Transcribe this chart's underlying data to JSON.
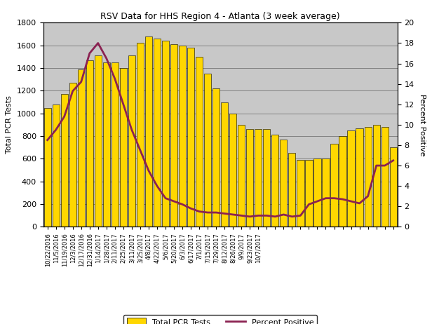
{
  "title": "RSV Data for HHS Region 4 - Atlanta (3 week average)",
  "ylabel_left": "Total PCR Tests",
  "ylabel_right": "Percent Positive",
  "ylim_left": [
    0,
    1800
  ],
  "ylim_right": [
    0,
    20
  ],
  "yticks_left": [
    0,
    200,
    400,
    600,
    800,
    1000,
    1200,
    1400,
    1600,
    1800
  ],
  "yticks_right": [
    0,
    2,
    4,
    6,
    8,
    10,
    12,
    14,
    16,
    18,
    20
  ],
  "bar_color": "#FFD700",
  "bar_edge_color": "#000000",
  "line_color": "#8B2252",
  "background_color": "#C8C8C8",
  "labels": [
    "10/22/2016",
    "11/5/2016",
    "11/19/2016",
    "12/3/2016",
    "12/17/2016",
    "12/31/2016",
    "1/14/2017",
    "1/28/2017",
    "2/11/2017",
    "2/25/2017",
    "3/11/2017",
    "3/25/2017",
    "4/8/2017",
    "4/22/2017",
    "5/6/2017",
    "5/20/2017",
    "6/3/2017",
    "6/17/2017",
    "7/1/2017",
    "7/15/2017",
    "7/29/2017",
    "8/12/2017",
    "8/26/2017",
    "9/9/2017",
    "9/23/2017",
    "10/7/2017"
  ],
  "bar_values": [
    1050,
    1080,
    1170,
    1270,
    1390,
    1470,
    1510,
    1450,
    1450,
    1400,
    1510,
    1620,
    1680,
    1660,
    1640,
    1610,
    1600,
    1580,
    1500,
    1350,
    1220,
    1100,
    1000,
    900,
    860,
    860
  ],
  "bar_values_full": [
    1050,
    1080,
    1170,
    1270,
    1390,
    1470,
    1510,
    1450,
    1450,
    1400,
    1510,
    1620,
    1680,
    1660,
    1640,
    1610,
    1600,
    1580,
    1500,
    1350,
    1220,
    1100,
    1000,
    900,
    860,
    860,
    860,
    810,
    770,
    650,
    590,
    590,
    600,
    600,
    730,
    800,
    850,
    870,
    880,
    900,
    880,
    700
  ],
  "percent_positive_full": [
    8.5,
    9.5,
    10.8,
    13.3,
    14.2,
    17.0,
    18.0,
    16.5,
    14.5,
    12.0,
    9.5,
    7.5,
    5.5,
    4.0,
    2.8,
    2.5,
    2.2,
    1.8,
    1.5,
    1.4,
    1.4,
    1.3,
    1.2,
    1.1,
    1.0,
    1.1,
    1.1,
    1.0,
    1.2,
    1.0,
    1.1,
    2.2,
    2.5,
    2.8,
    2.8,
    2.7,
    2.5,
    2.3,
    3.0,
    6.0,
    6.0,
    6.5
  ],
  "all_labels": [
    "10/22/2016",
    "11/5/2016",
    "11/19/2016",
    "12/3/2016",
    "12/17/2016",
    "12/31/2016",
    "1/14/2017",
    "1/28/2017",
    "2/11/2017",
    "2/25/2017",
    "3/11/2017",
    "3/25/2017",
    "4/8/2017",
    "4/22/2017",
    "5/6/2017",
    "5/20/2017",
    "6/3/2017",
    "6/17/2017",
    "7/1/2017",
    "7/15/2017",
    "7/29/2017",
    "8/12/2017",
    "8/26/2017",
    "9/9/2017",
    "9/23/2017",
    "10/7/2017",
    "",
    "",
    "",
    "",
    "",
    "",
    "",
    "",
    "",
    "",
    "",
    "",
    "",
    "",
    "",
    ""
  ]
}
